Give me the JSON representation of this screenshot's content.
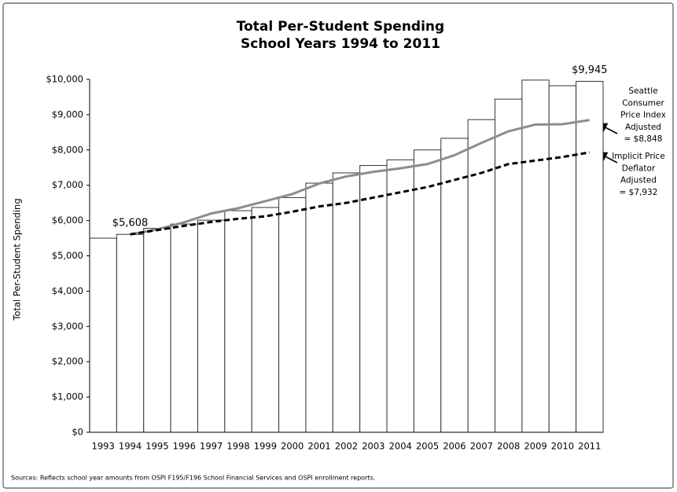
{
  "chart_data": {
    "type": "bar",
    "title_lines": [
      "Total Per-Student Spending",
      "School Years 1994 to 2011"
    ],
    "y_label": "Total Per-Student Spending",
    "source": "Sources:  Reflects school year amounts from OSPI F195/F196 School Financial Services and OSPI enrollment reports.",
    "categories": [
      "1993",
      "1994",
      "1995",
      "1996",
      "1997",
      "1998",
      "1999",
      "2000",
      "2001",
      "2002",
      "2003",
      "2004",
      "2005",
      "2006",
      "2007",
      "2008",
      "2009",
      "2010",
      "2011"
    ],
    "values": [
      5500,
      5608,
      5780,
      5900,
      6010,
      6280,
      6370,
      6650,
      7060,
      7350,
      7560,
      7720,
      8000,
      8330,
      8860,
      9440,
      9980,
      9820,
      9945
    ],
    "value_labels": [
      null,
      "$5,608",
      null,
      null,
      null,
      null,
      null,
      null,
      null,
      null,
      null,
      null,
      null,
      null,
      null,
      null,
      null,
      null,
      "$9,945"
    ],
    "color": "#ffffff",
    "edge_color": "#333333",
    "ylim": [
      0,
      10000
    ],
    "yticks": [
      {
        "value": 0,
        "label": "$0"
      },
      {
        "value": 1000,
        "label": "$1,000"
      },
      {
        "value": 2000,
        "label": "$2,000"
      },
      {
        "value": 3000,
        "label": "$3,000"
      },
      {
        "value": 4000,
        "label": "$4,000"
      },
      {
        "value": 5000,
        "label": "$5,000"
      },
      {
        "value": 6000,
        "label": "$6,000"
      },
      {
        "value": 7000,
        "label": "$7,000"
      },
      {
        "value": 8000,
        "label": "$8,000"
      },
      {
        "value": 9000,
        "label": "$9,000"
      },
      {
        "value": 10000,
        "label": "$10,000"
      }
    ],
    "grid": false,
    "lines": [
      {
        "label_lines": [
          "Seattle",
          "Consumer",
          "Price Index",
          "Adjusted",
          "= $8,848"
        ],
        "color": "#8c8c8c",
        "dashed": false,
        "values": [
          null,
          5608,
          5750,
          5950,
          6200,
          6350,
          6550,
          6750,
          7050,
          7250,
          7380,
          7480,
          7600,
          7850,
          8200,
          8530,
          8720,
          8730,
          8848
        ]
      },
      {
        "label_lines": [
          "Implicit Price",
          "Deflator",
          "Adjusted",
          "= $7,932"
        ],
        "color": "#000000",
        "dashed": true,
        "values": [
          null,
          5608,
          5730,
          5850,
          5960,
          6050,
          6120,
          6250,
          6400,
          6500,
          6650,
          6800,
          6950,
          7150,
          7350,
          7600,
          7700,
          7800,
          7932
        ]
      }
    ]
  }
}
